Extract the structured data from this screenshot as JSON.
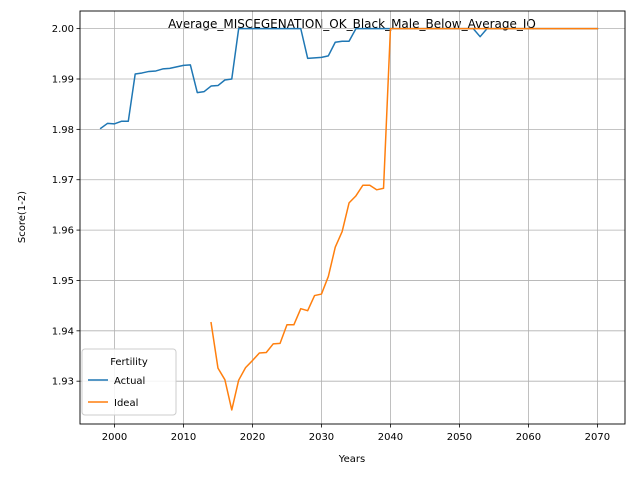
{
  "chart_data": {
    "type": "line",
    "title": "Average_MISCEGENATION_OK_Black_Male_Below_Average_IQ",
    "xlabel": "Years",
    "ylabel": "Score(1-2)",
    "xlim": [
      1995,
      2074
    ],
    "ylim": [
      1.9215,
      2.0035
    ],
    "x_ticks": [
      2000,
      2010,
      2020,
      2030,
      2040,
      2050,
      2060,
      2070
    ],
    "y_ticks": [
      1.93,
      1.94,
      1.95,
      1.96,
      1.97,
      1.98,
      1.99,
      2.0
    ],
    "y_tick_labels": [
      "1.93",
      "1.94",
      "1.95",
      "1.96",
      "1.97",
      "1.98",
      "1.99",
      "2.00"
    ],
    "grid": true,
    "legend": {
      "title": "Fertility",
      "position": "lower-left"
    },
    "series": [
      {
        "name": "Actual",
        "color": "#1f77b4",
        "points": [
          [
            1998,
            1.9802
          ],
          [
            1999,
            1.9812
          ],
          [
            2000,
            1.9811
          ],
          [
            2001,
            1.9816
          ],
          [
            2002,
            1.9816
          ],
          [
            2003,
            1.991
          ],
          [
            2004,
            1.9912
          ],
          [
            2005,
            1.9915
          ],
          [
            2006,
            1.9916
          ],
          [
            2007,
            1.992
          ],
          [
            2008,
            1.9921
          ],
          [
            2009,
            1.9924
          ],
          [
            2010,
            1.9927
          ],
          [
            2011,
            1.9928
          ],
          [
            2012,
            1.9873
          ],
          [
            2013,
            1.9875
          ],
          [
            2014,
            1.9886
          ],
          [
            2015,
            1.9887
          ],
          [
            2016,
            1.9898
          ],
          [
            2017,
            1.99
          ],
          [
            2018,
            2.0
          ],
          [
            2019,
            2.0
          ],
          [
            2020,
            2.0
          ],
          [
            2021,
            2.0
          ],
          [
            2022,
            2.0
          ],
          [
            2023,
            2.0
          ],
          [
            2024,
            2.0
          ],
          [
            2025,
            2.0
          ],
          [
            2026,
            2.0
          ],
          [
            2027,
            2.0
          ],
          [
            2028,
            1.9941
          ],
          [
            2029,
            1.9942
          ],
          [
            2030,
            1.9943
          ],
          [
            2031,
            1.9946
          ],
          [
            2032,
            1.9973
          ],
          [
            2033,
            1.9975
          ],
          [
            2034,
            1.9975
          ],
          [
            2035,
            2.0
          ],
          [
            2036,
            2.0
          ],
          [
            2037,
            2.0
          ],
          [
            2038,
            2.0
          ],
          [
            2039,
            2.0
          ],
          [
            2040,
            2.0
          ],
          [
            2045,
            2.0
          ],
          [
            2050,
            2.0
          ],
          [
            2052,
            2.0
          ],
          [
            2053,
            1.9984
          ],
          [
            2054,
            2.0
          ],
          [
            2060,
            2.0
          ],
          [
            2065,
            2.0
          ],
          [
            2070,
            2.0
          ]
        ]
      },
      {
        "name": "Ideal",
        "color": "#ff7f0e",
        "points": [
          [
            2014,
            1.9416
          ],
          [
            2015,
            1.9326
          ],
          [
            2016,
            1.9303
          ],
          [
            2017,
            1.9243
          ],
          [
            2018,
            1.9302
          ],
          [
            2019,
            1.9327
          ],
          [
            2020,
            1.9341
          ],
          [
            2021,
            1.9356
          ],
          [
            2022,
            1.9357
          ],
          [
            2023,
            1.9374
          ],
          [
            2024,
            1.9375
          ],
          [
            2025,
            1.9412
          ],
          [
            2026,
            1.9412
          ],
          [
            2027,
            1.9444
          ],
          [
            2028,
            1.944
          ],
          [
            2029,
            1.947
          ],
          [
            2030,
            1.9473
          ],
          [
            2031,
            1.9508
          ],
          [
            2032,
            1.9566
          ],
          [
            2033,
            1.9597
          ],
          [
            2034,
            1.9654
          ],
          [
            2035,
            1.9668
          ],
          [
            2036,
            1.9689
          ],
          [
            2037,
            1.9689
          ],
          [
            2038,
            1.968
          ],
          [
            2039,
            1.9683
          ],
          [
            2040,
            2.0
          ],
          [
            2045,
            2.0
          ],
          [
            2050,
            2.0
          ],
          [
            2055,
            2.0
          ],
          [
            2060,
            2.0
          ],
          [
            2065,
            2.0
          ],
          [
            2070,
            2.0
          ]
        ]
      }
    ]
  }
}
